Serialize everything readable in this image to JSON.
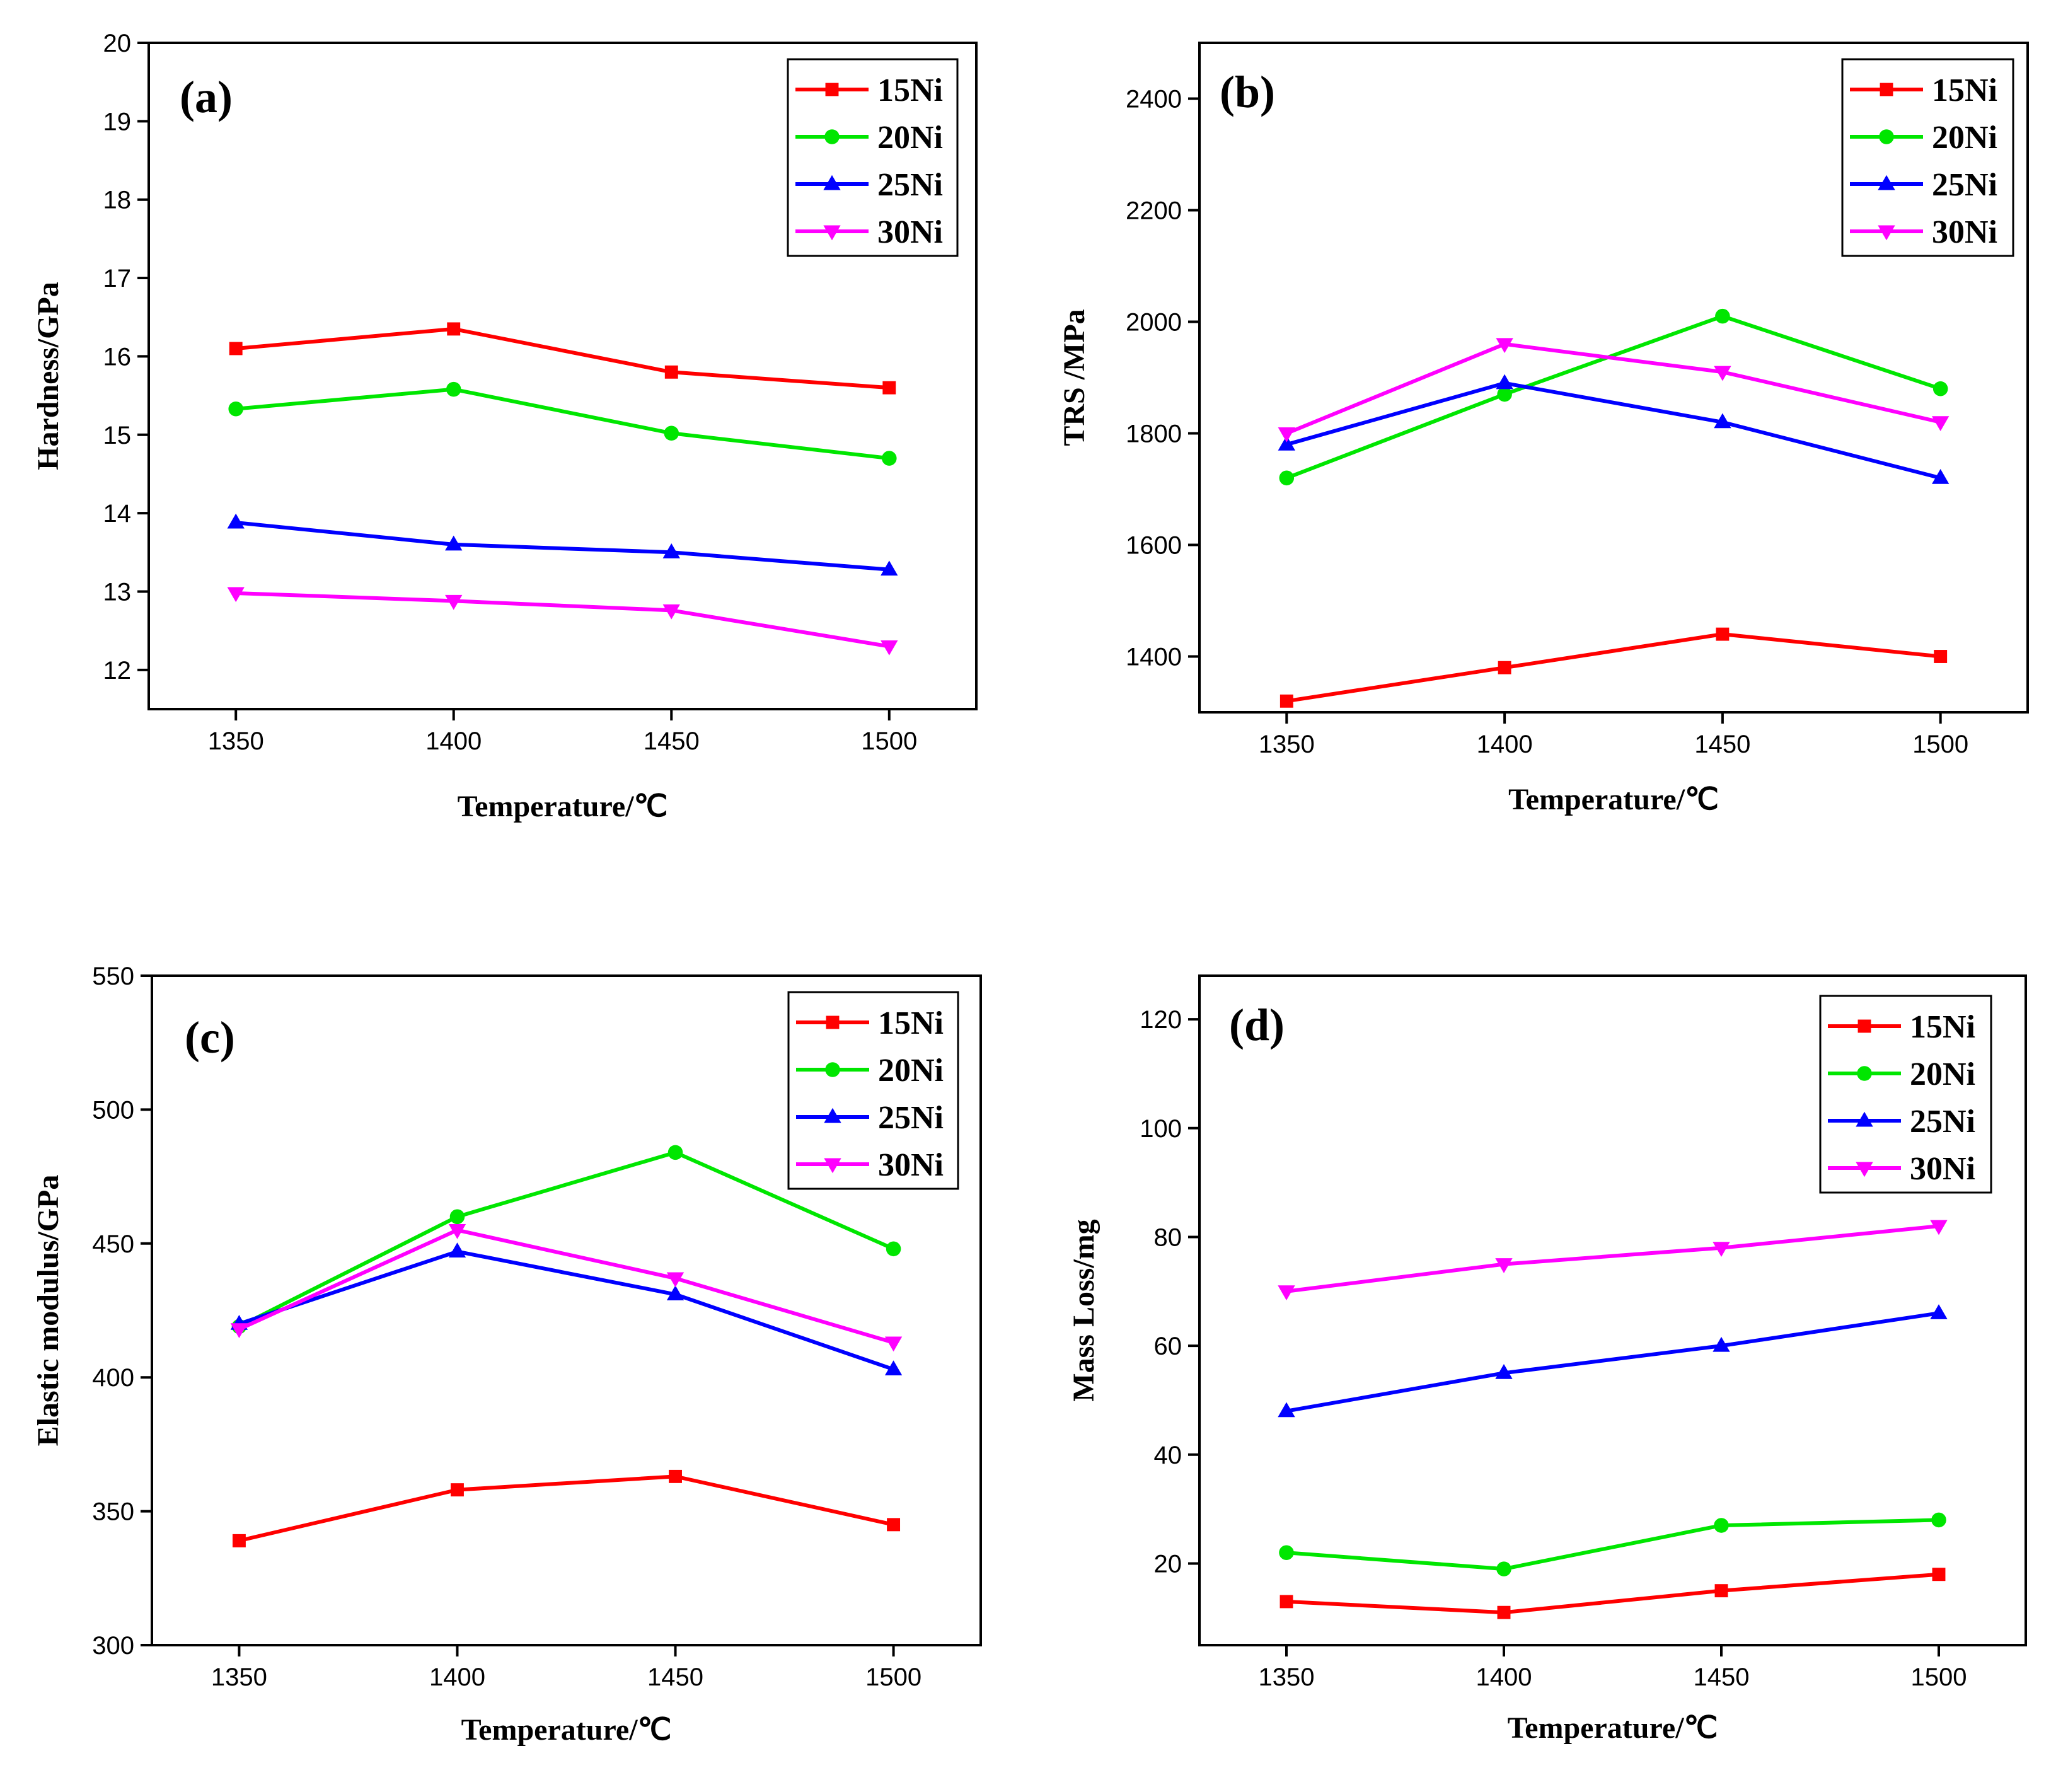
{
  "colors": {
    "15Ni": "#ff0000",
    "20Ni": "#00e600",
    "25Ni": "#0000ff",
    "30Ni": "#ff00ff"
  },
  "chart_data": [
    {
      "type": "line",
      "label": "(a)",
      "title": "",
      "xlabel": "Temperature/℃",
      "ylabel": "Hardness/GPa",
      "categories": [
        1350,
        1400,
        1450,
        1500
      ],
      "xlim": [
        1330,
        1520
      ],
      "ylim": [
        11.5,
        20
      ],
      "xticks": [
        1350,
        1400,
        1450,
        1500
      ],
      "yticks": [
        12,
        13,
        14,
        15,
        16,
        17,
        18,
        19,
        20
      ],
      "legend_position": "top-right",
      "series": [
        {
          "name": "15Ni",
          "marker": "square",
          "values": [
            16.1,
            16.35,
            15.8,
            15.6
          ]
        },
        {
          "name": "20Ni",
          "marker": "circle",
          "values": [
            15.33,
            15.58,
            15.02,
            14.7
          ]
        },
        {
          "name": "25Ni",
          "marker": "triangle-up",
          "values": [
            13.88,
            13.6,
            13.5,
            13.28
          ]
        },
        {
          "name": "30Ni",
          "marker": "triangle-down",
          "values": [
            12.98,
            12.88,
            12.76,
            12.3
          ]
        }
      ]
    },
    {
      "type": "line",
      "label": "(b)",
      "title": "",
      "xlabel": "Temperature/℃",
      "ylabel": "TRS /MPa",
      "categories": [
        1350,
        1400,
        1450,
        1500
      ],
      "xlim": [
        1330,
        1520
      ],
      "ylim": [
        1300,
        2500
      ],
      "xticks": [
        1350,
        1400,
        1450,
        1500
      ],
      "yticks": [
        1400,
        1600,
        1800,
        2000,
        2200,
        2400
      ],
      "legend_position": "top-right",
      "series": [
        {
          "name": "15Ni",
          "marker": "square",
          "values": [
            1320,
            1380,
            1440,
            1400
          ]
        },
        {
          "name": "20Ni",
          "marker": "circle",
          "values": [
            1720,
            1870,
            2010,
            1880
          ]
        },
        {
          "name": "25Ni",
          "marker": "triangle-up",
          "values": [
            1780,
            1890,
            1820,
            1720
          ]
        },
        {
          "name": "30Ni",
          "marker": "triangle-down",
          "values": [
            1800,
            1960,
            1910,
            1820
          ]
        }
      ]
    },
    {
      "type": "line",
      "label": "(c)",
      "title": "",
      "xlabel": "Temperature/℃",
      "ylabel": "Elastic modulus/GPa",
      "categories": [
        1350,
        1400,
        1450,
        1500
      ],
      "xlim": [
        1330,
        1520
      ],
      "ylim": [
        300,
        550
      ],
      "xticks": [
        1350,
        1400,
        1450,
        1500
      ],
      "yticks": [
        300,
        350,
        400,
        450,
        500,
        550
      ],
      "legend_position": "top-right",
      "series": [
        {
          "name": "15Ni",
          "marker": "square",
          "values": [
            339,
            358,
            363,
            345
          ]
        },
        {
          "name": "20Ni",
          "marker": "circle",
          "values": [
            419,
            460,
            484,
            448
          ]
        },
        {
          "name": "25Ni",
          "marker": "triangle-up",
          "values": [
            420,
            447,
            431,
            403
          ]
        },
        {
          "name": "30Ni",
          "marker": "triangle-down",
          "values": [
            418,
            455,
            437,
            413
          ]
        }
      ]
    },
    {
      "type": "line",
      "label": "(d)",
      "title": "",
      "xlabel": "Temperature/℃",
      "ylabel": "Mass Loss/mg",
      "categories": [
        1350,
        1400,
        1450,
        1500
      ],
      "xlim": [
        1330,
        1520
      ],
      "ylim": [
        5,
        128
      ],
      "xticks": [
        1350,
        1400,
        1450,
        1500
      ],
      "yticks": [
        20,
        40,
        60,
        80,
        100,
        120
      ],
      "legend_position": "top-right",
      "series": [
        {
          "name": "15Ni",
          "marker": "square",
          "values": [
            13,
            11,
            15,
            18
          ]
        },
        {
          "name": "20Ni",
          "marker": "circle",
          "values": [
            22,
            19,
            27,
            28
          ]
        },
        {
          "name": "25Ni",
          "marker": "triangle-up",
          "values": [
            48,
            55,
            60,
            66
          ]
        },
        {
          "name": "30Ni",
          "marker": "triangle-down",
          "values": [
            70,
            75,
            78,
            82
          ]
        }
      ]
    }
  ]
}
